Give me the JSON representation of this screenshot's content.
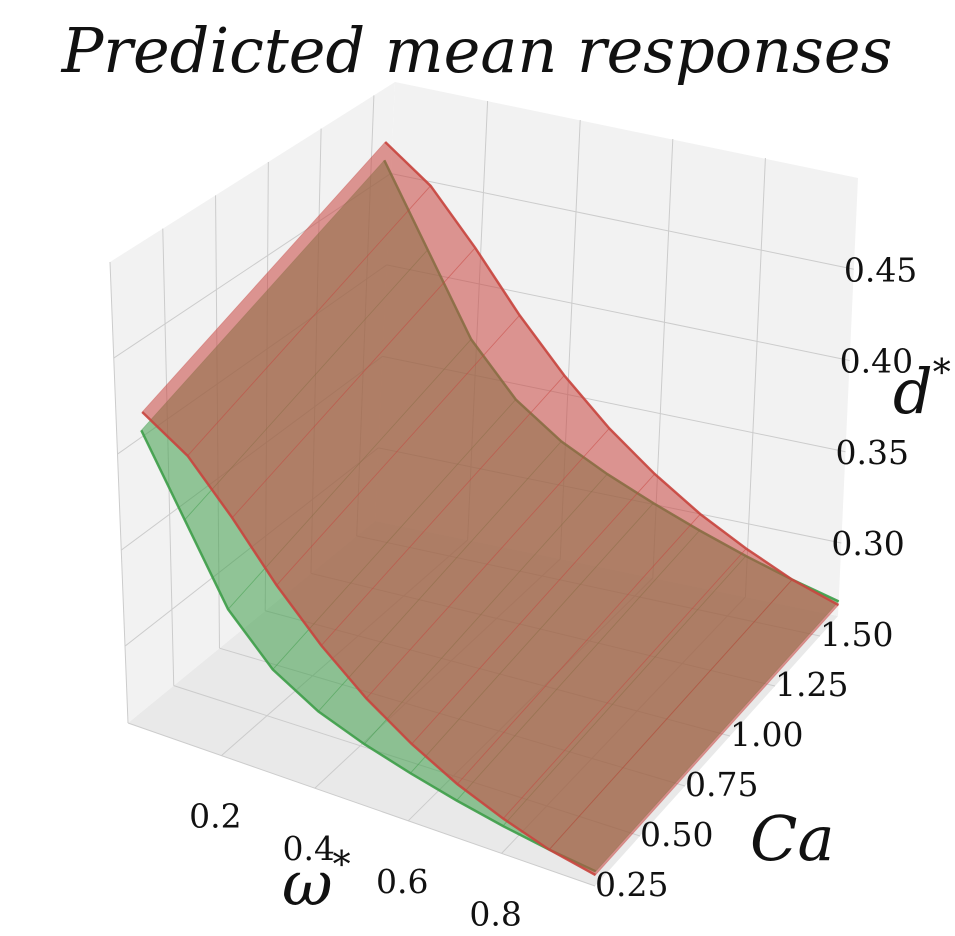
{
  "chart_data": {
    "type": "surface3d",
    "title": "Predicted mean responses",
    "xlabel": "ω",
    "xlabel_sup": "*",
    "ylabel": "Ca",
    "zlabel": "d",
    "zlabel_sup": "*",
    "x_ticks": [
      "0.2",
      "0.4",
      "0.6",
      "0.8"
    ],
    "y_ticks": [
      "0.25",
      "0.50",
      "0.75",
      "1.00",
      "1.25",
      "1.50"
    ],
    "z_ticks": [
      "0.30",
      "0.35",
      "0.40",
      "0.45"
    ],
    "x_range": [
      0.0,
      1.0
    ],
    "y_range": [
      0.25,
      1.6
    ],
    "z_range": [
      0.26,
      0.5
    ],
    "grid": true,
    "series": [
      {
        "color": "#c8463f",
        "profile_x": [
          0.0,
          0.1,
          0.2,
          0.3,
          0.4,
          0.5,
          0.6,
          0.7,
          0.8,
          0.9,
          1.0
        ],
        "profile_z": [
          0.43,
          0.415,
          0.39,
          0.362,
          0.338,
          0.318,
          0.302,
          0.289,
          0.279,
          0.271,
          0.266
        ]
      },
      {
        "color": "#3f9e4a",
        "profile_x": [
          0.0,
          0.1,
          0.2,
          0.3,
          0.4,
          0.5,
          0.6,
          0.7,
          0.8,
          0.9,
          1.0
        ],
        "profile_z": [
          0.42,
          0.38,
          0.34,
          0.316,
          0.302,
          0.293,
          0.286,
          0.28,
          0.275,
          0.271,
          0.268
        ]
      }
    ],
    "colors": {
      "pane": "#f2f2f2",
      "pane_dark": "#e9e9e9",
      "grid": "#cccccc"
    }
  }
}
